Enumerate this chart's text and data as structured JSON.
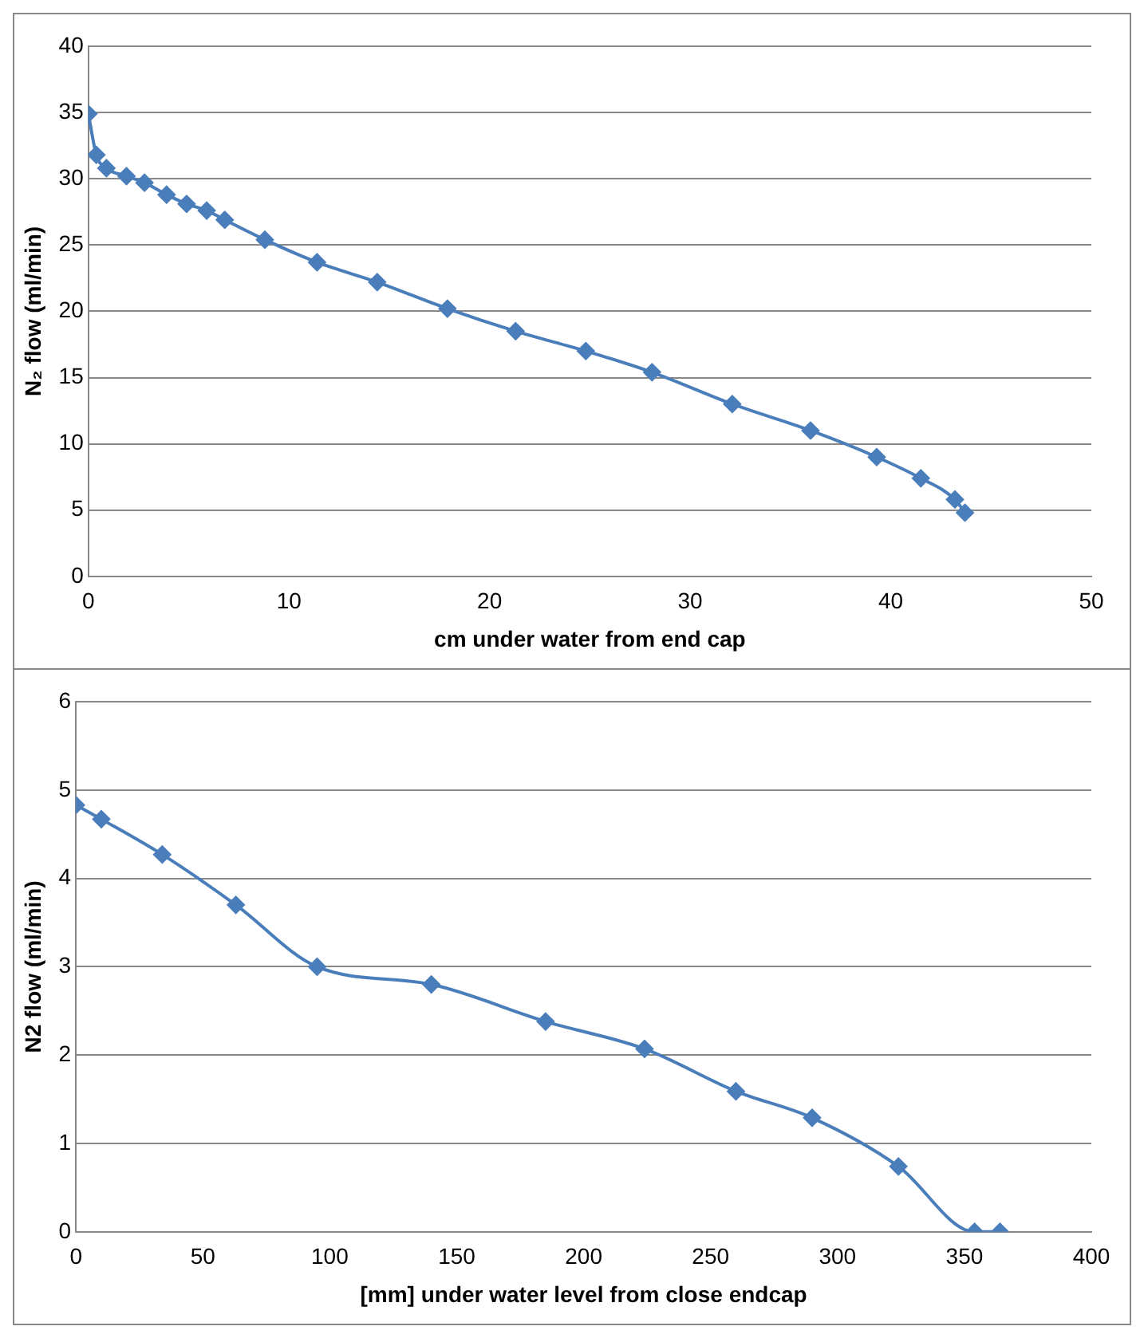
{
  "chart_data": [
    {
      "type": "line",
      "xlabel": "cm under water from end cap",
      "ylabel": "N₂ flow (ml/min)",
      "x": [
        0,
        0.4,
        0.9,
        1.9,
        2.8,
        3.9,
        4.9,
        5.9,
        6.8,
        8.8,
        11.4,
        14.4,
        17.9,
        21.3,
        24.8,
        28.1,
        32.1,
        36.0,
        39.3,
        41.5,
        43.2,
        43.7
      ],
      "series": [
        {
          "color": "#4a7ebb",
          "values": [
            34.9,
            31.8,
            30.8,
            30.2,
            29.7,
            28.8,
            28.1,
            27.6,
            26.9,
            25.4,
            23.7,
            22.2,
            20.2,
            18.5,
            17.0,
            15.4,
            13.0,
            11.0,
            9.0,
            7.4,
            5.8,
            4.8
          ]
        }
      ],
      "xlim": [
        0,
        50
      ],
      "xticks": [
        0,
        10,
        20,
        30,
        40,
        50
      ],
      "ylim": [
        0,
        40
      ],
      "yticks": [
        0,
        5,
        10,
        15,
        20,
        25,
        30,
        35,
        40
      ],
      "grid": "y",
      "marker": "diamond",
      "legend": false
    },
    {
      "type": "line",
      "xlabel": "[mm] under water level from close endcap",
      "ylabel": "N2 flow (ml/min)",
      "x": [
        0,
        10,
        34,
        63,
        95,
        140,
        185,
        224,
        260,
        290,
        324,
        354,
        364
      ],
      "series": [
        {
          "color": "#4a7ebb",
          "values": [
            4.83,
            4.67,
            4.27,
            3.7,
            3.0,
            2.8,
            2.38,
            2.07,
            1.59,
            1.29,
            0.74,
            0,
            0
          ]
        }
      ],
      "xlim": [
        0,
        400
      ],
      "xticks": [
        0,
        50,
        100,
        150,
        200,
        250,
        300,
        350,
        400
      ],
      "ylim": [
        0,
        6
      ],
      "yticks": [
        0,
        1,
        2,
        3,
        4,
        5,
        6
      ],
      "grid": "y",
      "marker": "diamond",
      "legend": false
    }
  ]
}
